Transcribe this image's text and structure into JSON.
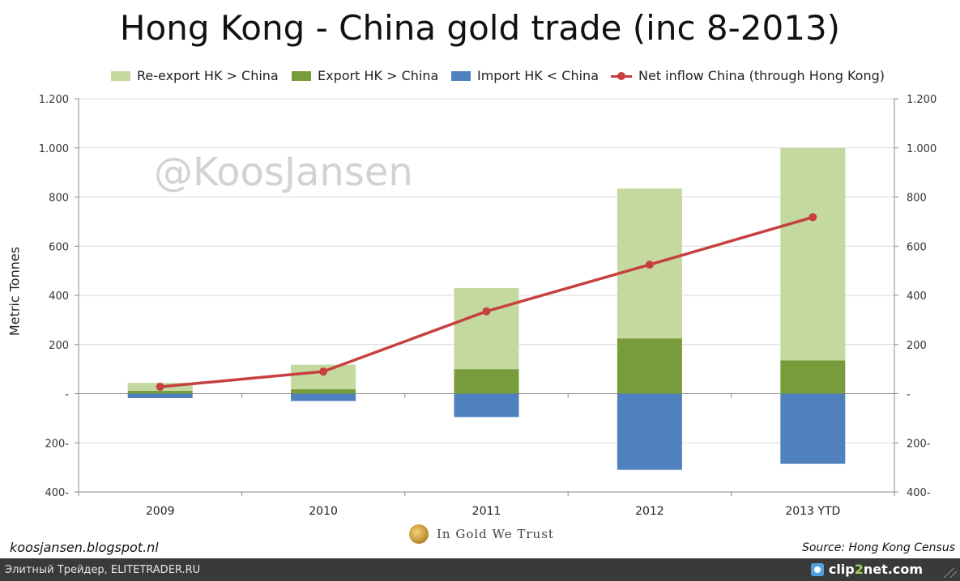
{
  "title": "Hong Kong - China gold trade (inc 8-2013)",
  "watermark": "@KoosJansen",
  "footer": {
    "left": "koosjansen.blogspot.nl",
    "right": "Source: Hong Kong Census",
    "brand": "In Gold We Trust"
  },
  "bottom_bar": {
    "text": "Элитный Трейдер, ELITETRADER.RU",
    "logo_left": "clip",
    "logo_accent": "2",
    "logo_right": "net.com"
  },
  "colors": {
    "reexport": "#c4d9a0",
    "export": "#789c3c",
    "import": "#4e81bd",
    "net": "#c5403f",
    "grid": "#d9d9d9",
    "axis": "#888888",
    "tick_text": "#333333"
  },
  "chart_data": {
    "type": "bar",
    "title": "Hong Kong - China gold trade (inc 8-2013)",
    "ylabel": "Metric Tonnes",
    "categories": [
      "2009",
      "2010",
      "2011",
      "2012",
      "2013 YTD"
    ],
    "ylim": [
      -400,
      1200
    ],
    "yticks": [
      -400,
      -200,
      0,
      200,
      400,
      600,
      800,
      1000,
      1200
    ],
    "ytick_labels": [
      "400-",
      "200-",
      "-",
      "200",
      "400",
      "600",
      "800",
      "1.000",
      "1.200"
    ],
    "grid": true,
    "legend_position": "top",
    "series": [
      {
        "name": "Re-export HK > China",
        "kind": "bar",
        "values": [
          32,
          100,
          330,
          610,
          865
        ]
      },
      {
        "name": "Export HK > China",
        "kind": "bar",
        "values": [
          12,
          18,
          100,
          225,
          135
        ]
      },
      {
        "name": "Import HK < China",
        "kind": "bar",
        "values": [
          -18,
          -30,
          -95,
          -310,
          -285
        ]
      },
      {
        "name": "Net inflow China (through Hong Kong)",
        "kind": "line",
        "values": [
          28,
          90,
          335,
          525,
          718
        ]
      }
    ]
  }
}
